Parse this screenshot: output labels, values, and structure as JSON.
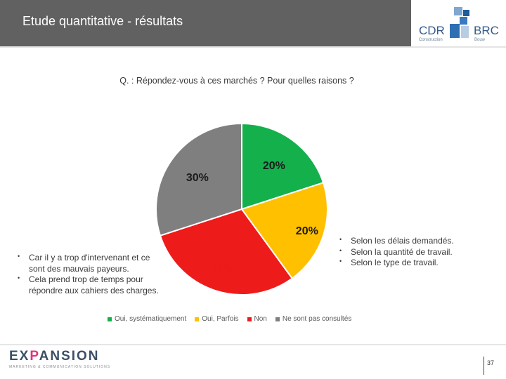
{
  "header": {
    "title": "Etude quantitative - résultats",
    "logo_text_left": "CDR",
    "logo_text_right": "BRC",
    "logo_sub_left": "Construction",
    "logo_sub_right": "Bouw"
  },
  "question": "Q. : Répondez-vous à ces marchés ? Pour quelles raisons ?",
  "chart_data": {
    "type": "pie",
    "title": "",
    "categories": [
      "Oui, systématiquement",
      "Oui, Parfois",
      "Non",
      "Ne sont pas consultés"
    ],
    "values": [
      20,
      20,
      30,
      30
    ],
    "value_labels": [
      "20%",
      "20%",
      "30%",
      "30%"
    ],
    "colors": [
      "#13b04c",
      "#ffc000",
      "#ee1b1b",
      "#7f7f7f"
    ],
    "label_colors": [
      "#1a1a1a",
      "#1a1a1a",
      "#ee1b1b",
      "#1a1a1a"
    ],
    "start": "12 o'clock",
    "direction": "clockwise",
    "legend_position": "bottom"
  },
  "left_bullets": [
    "Car il y a trop d'intervenant et ce sont des mauvais payeurs.",
    "Cela prend trop de temps pour répondre aux cahiers des charges."
  ],
  "right_bullets": [
    "Selon les délais demandés.",
    "Selon la quantité de travail.",
    "Selon le type de travail."
  ],
  "footer": {
    "brand_pre": "EX",
    "brand_accent": "P",
    "brand_post": "ANSION",
    "tagline": "MARKETING & COMMUNICATION SOLUTIONS",
    "page_number": "37"
  },
  "colors": {
    "header_bg": "#616161",
    "brand_blue": "#3d4f66",
    "brand_pink": "#e2357a"
  }
}
